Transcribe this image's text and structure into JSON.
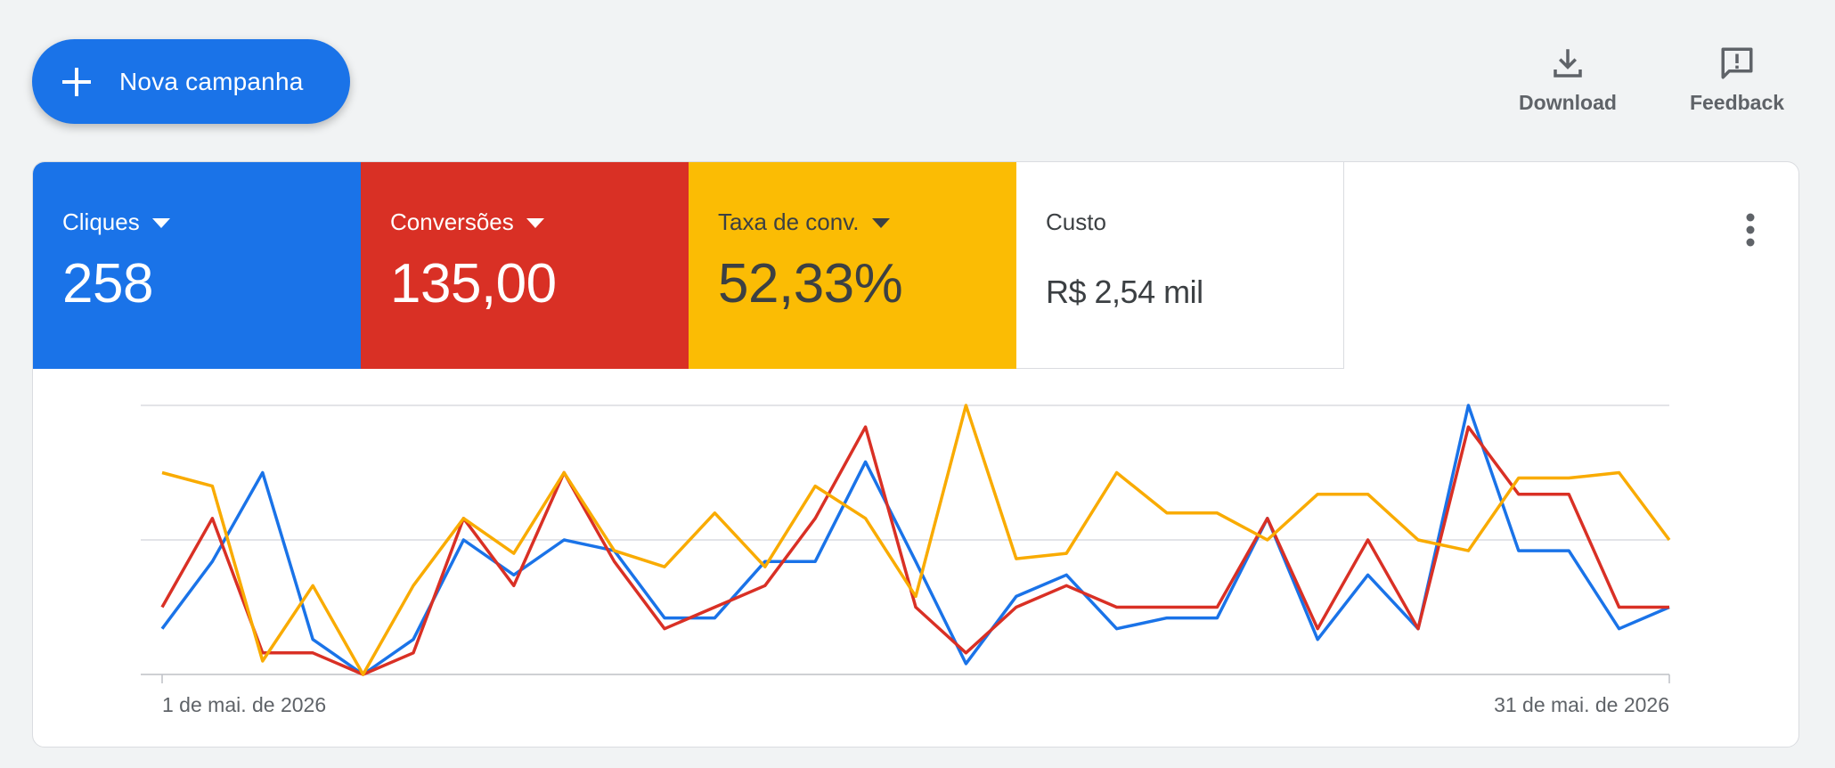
{
  "toolbar": {
    "new_campaign_label": "Nova campanha",
    "download_label": "Download",
    "feedback_label": "Feedback"
  },
  "icons": {
    "new_campaign": "plus-icon",
    "download": "download-icon",
    "feedback": "feedback-icon",
    "more": "more-vert-icon"
  },
  "metrics": [
    {
      "label": "Cliques",
      "value": "258",
      "color": "#1a73e8",
      "has_dropdown": true
    },
    {
      "label": "Conversões",
      "value": "135,00",
      "color": "#d93025",
      "has_dropdown": true
    },
    {
      "label": "Taxa de conv.",
      "value": "52,33%",
      "color": "#fbbc04",
      "has_dropdown": true
    },
    {
      "label": "Custo",
      "value": "R$ 2,54 mil",
      "color": "#ffffff",
      "has_dropdown": false
    }
  ],
  "chart_data": {
    "type": "line",
    "x_start_label": "1 de mai. de 2026",
    "x_end_label": "31 de mai. de 2026",
    "grid": true,
    "y_axis_labels_shown": false,
    "ylim": [
      0,
      1
    ],
    "x": [
      1,
      2,
      3,
      4,
      5,
      6,
      7,
      8,
      9,
      10,
      11,
      12,
      13,
      14,
      15,
      16,
      17,
      18,
      19,
      20,
      21,
      22,
      23,
      24,
      25,
      26,
      27,
      28,
      29,
      30,
      31
    ],
    "series": [
      {
        "color": "#1a73e8",
        "values": [
          0.17,
          0.42,
          0.75,
          0.13,
          0.0,
          0.13,
          0.5,
          0.37,
          0.5,
          0.46,
          0.21,
          0.21,
          0.42,
          0.42,
          0.79,
          0.42,
          0.04,
          0.29,
          0.37,
          0.17,
          0.21,
          0.21,
          0.58,
          0.13,
          0.37,
          0.17,
          1.0,
          0.46,
          0.46,
          0.17,
          0.25
        ]
      },
      {
        "color": "#d93025",
        "values": [
          0.25,
          0.58,
          0.08,
          0.08,
          0.0,
          0.08,
          0.58,
          0.33,
          0.75,
          0.42,
          0.17,
          0.25,
          0.33,
          0.58,
          0.92,
          0.25,
          0.08,
          0.25,
          0.33,
          0.25,
          0.25,
          0.25,
          0.58,
          0.17,
          0.5,
          0.17,
          0.92,
          0.67,
          0.67,
          0.25,
          0.25
        ]
      },
      {
        "color": "#f9ab00",
        "values": [
          0.75,
          0.7,
          0.05,
          0.33,
          0.0,
          0.33,
          0.58,
          0.45,
          0.75,
          0.46,
          0.4,
          0.6,
          0.4,
          0.7,
          0.58,
          0.29,
          1.0,
          0.43,
          0.45,
          0.75,
          0.6,
          0.6,
          0.5,
          0.67,
          0.67,
          0.5,
          0.46,
          0.73,
          0.73,
          0.75,
          0.5
        ]
      }
    ]
  }
}
